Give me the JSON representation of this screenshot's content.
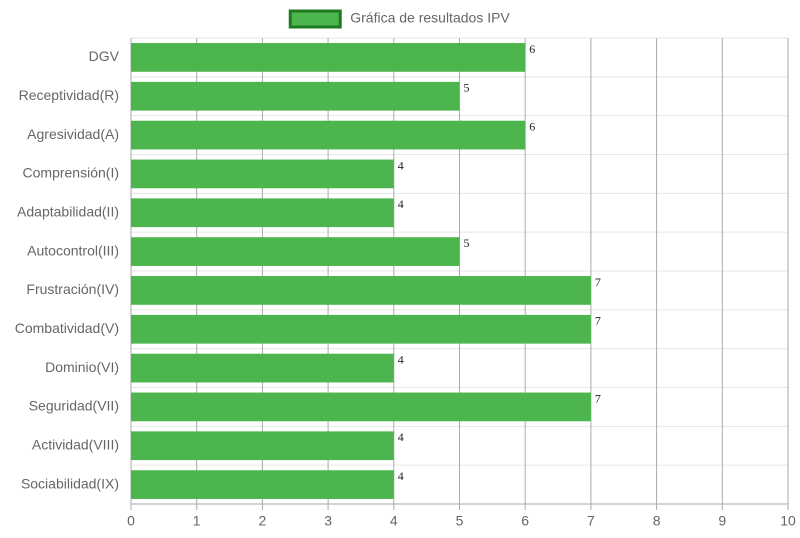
{
  "chart_data": {
    "type": "bar",
    "orientation": "horizontal",
    "categories": [
      "DGV",
      "Receptividad(R)",
      "Agresividad(A)",
      "Comprensión(I)",
      "Adaptabilidad(II)",
      "Autocontrol(III)",
      "Frustración(IV)",
      "Combatividad(V)",
      "Dominio(VI)",
      "Seguridad(VII)",
      "Actividad(VIII)",
      "Sociabilidad(IX)"
    ],
    "series": [
      {
        "name": "Gráfica de resultados IPV",
        "color": "#4db54d",
        "border_color": "#1f7a1f",
        "values": [
          6,
          5,
          6,
          4,
          4,
          5,
          7,
          7,
          4,
          7,
          4,
          4
        ]
      }
    ],
    "xlim": [
      0,
      10
    ],
    "xticks": [
      0,
      1,
      2,
      3,
      4,
      5,
      6,
      7,
      8,
      9,
      10
    ],
    "grid": true,
    "legend": "top"
  }
}
